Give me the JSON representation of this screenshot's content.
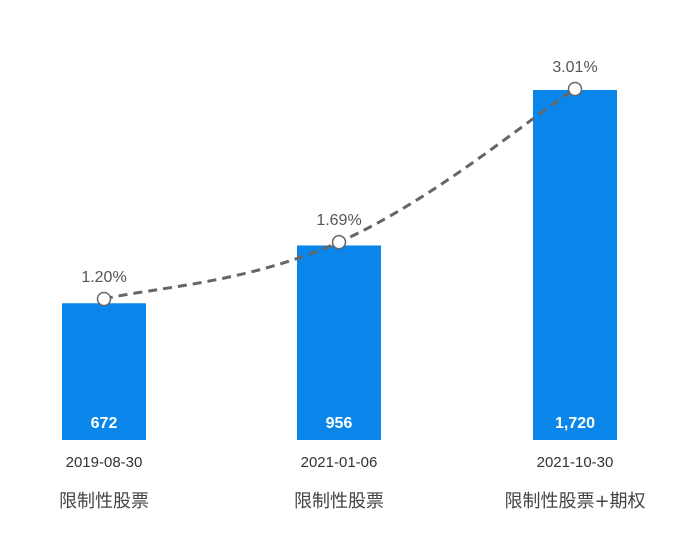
{
  "chart_data": {
    "type": "bar",
    "categories": [
      "2019-08-30",
      "2021-01-06",
      "2021-10-30"
    ],
    "category_sublabels": [
      "限制性股票",
      "限制性股票",
      "限制性股票+期权"
    ],
    "series": [
      {
        "type": "bar",
        "values": [
          672,
          956,
          1720
        ],
        "value_labels": [
          "672",
          "956",
          "1,720"
        ],
        "color": "#0a86ea"
      },
      {
        "type": "line",
        "values": [
          1.2,
          1.69,
          3.01
        ],
        "value_labels": [
          "1.20%",
          "1.69%",
          "3.01%"
        ],
        "color": "#666666",
        "style": "dashed"
      }
    ],
    "title": "",
    "xlabel": "",
    "ylabel": "",
    "grid": false,
    "legend": "none"
  }
}
